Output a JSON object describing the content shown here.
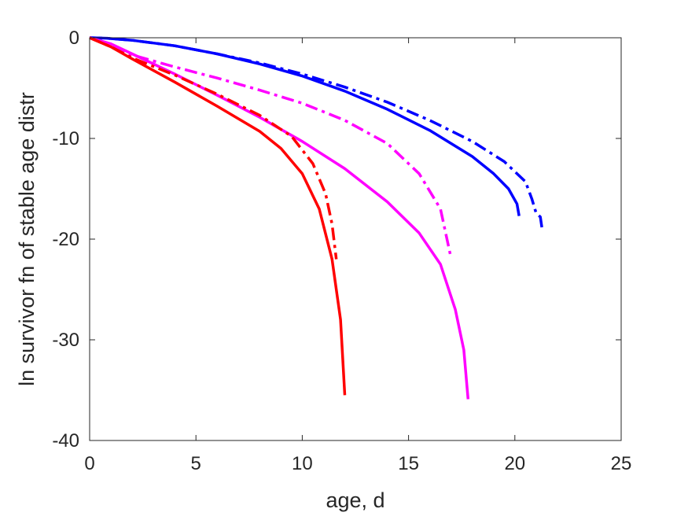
{
  "chart_data": {
    "type": "line",
    "title": "",
    "xlabel": "age, d",
    "ylabel": "ln survivor fn of stable age distr",
    "xlim": [
      0,
      25
    ],
    "ylim": [
      -40,
      0
    ],
    "xticks": [
      0,
      5,
      10,
      15,
      20,
      25
    ],
    "yticks": [
      -40,
      -30,
      -20,
      -10,
      0
    ],
    "xtick_labels": [
      "0",
      "5",
      "10",
      "15",
      "20",
      "25"
    ],
    "ytick_labels": [
      "-40",
      "-30",
      "-20",
      "-10",
      "0"
    ],
    "grid": false,
    "legend": "none",
    "series": [
      {
        "color": "#0000ff",
        "line_style": "solid",
        "points": [
          [
            0,
            0
          ],
          [
            0.8,
            -0.05
          ],
          [
            2,
            -0.25
          ],
          [
            4,
            -0.8
          ],
          [
            6,
            -1.6
          ],
          [
            8,
            -2.6
          ],
          [
            10,
            -3.8
          ],
          [
            12,
            -5.3
          ],
          [
            14,
            -7.1
          ],
          [
            16,
            -9.2
          ],
          [
            18,
            -11.8
          ],
          [
            19,
            -13.5
          ],
          [
            19.7,
            -15
          ],
          [
            20.1,
            -16.5
          ],
          [
            20.2,
            -17.7
          ]
        ]
      },
      {
        "color": "#0000ff",
        "line_style": "dashdot",
        "points": [
          [
            0,
            0
          ],
          [
            0.8,
            -0.05
          ],
          [
            2,
            -0.25
          ],
          [
            4,
            -0.8
          ],
          [
            6,
            -1.6
          ],
          [
            8,
            -2.5
          ],
          [
            10,
            -3.6
          ],
          [
            12,
            -4.9
          ],
          [
            14,
            -6.4
          ],
          [
            16,
            -8.2
          ],
          [
            18,
            -10.3
          ],
          [
            19.5,
            -12.3
          ],
          [
            20.5,
            -14.3
          ],
          [
            20.8,
            -16
          ],
          [
            21,
            -17.4
          ],
          [
            21.2,
            -17.8
          ],
          [
            21.3,
            -19.3
          ]
        ]
      },
      {
        "color": "#ff00ff",
        "line_style": "solid",
        "points": [
          [
            0,
            0
          ],
          [
            1,
            -0.6
          ],
          [
            2,
            -1.6
          ],
          [
            4,
            -3.6
          ],
          [
            6,
            -5.7
          ],
          [
            8,
            -7.9
          ],
          [
            10,
            -10.3
          ],
          [
            12,
            -13
          ],
          [
            14,
            -16.3
          ],
          [
            15.5,
            -19.4
          ],
          [
            16.5,
            -22.5
          ],
          [
            17.2,
            -27
          ],
          [
            17.6,
            -31
          ],
          [
            17.8,
            -35.9
          ]
        ]
      },
      {
        "color": "#ff00ff",
        "line_style": "dashdot",
        "points": [
          [
            0,
            0
          ],
          [
            1,
            -0.7
          ],
          [
            2,
            -1.7
          ],
          [
            4,
            -2.9
          ],
          [
            6,
            -4
          ],
          [
            8,
            -5.2
          ],
          [
            10,
            -6.5
          ],
          [
            12,
            -8.2
          ],
          [
            14,
            -10.5
          ],
          [
            15.5,
            -13.5
          ],
          [
            16.5,
            -17
          ],
          [
            17,
            -21.9
          ]
        ]
      },
      {
        "color": "#ff0000",
        "line_style": "solid",
        "points": [
          [
            0,
            0
          ],
          [
            1,
            -0.9
          ],
          [
            2,
            -2.1
          ],
          [
            4,
            -4.4
          ],
          [
            6,
            -6.8
          ],
          [
            8,
            -9.3
          ],
          [
            9,
            -11
          ],
          [
            10,
            -13.5
          ],
          [
            10.8,
            -17
          ],
          [
            11.4,
            -22
          ],
          [
            11.8,
            -28
          ],
          [
            12,
            -35.5
          ]
        ]
      },
      {
        "color": "#ff0000",
        "line_style": "dashdot",
        "points": [
          [
            0,
            0
          ],
          [
            1,
            -0.9
          ],
          [
            2,
            -2
          ],
          [
            4,
            -3.7
          ],
          [
            6,
            -5.6
          ],
          [
            8,
            -7.7
          ],
          [
            9.5,
            -9.8
          ],
          [
            10.5,
            -12.5
          ],
          [
            11.1,
            -15.5
          ],
          [
            11.4,
            -18.5
          ],
          [
            11.6,
            -22
          ]
        ]
      }
    ]
  }
}
